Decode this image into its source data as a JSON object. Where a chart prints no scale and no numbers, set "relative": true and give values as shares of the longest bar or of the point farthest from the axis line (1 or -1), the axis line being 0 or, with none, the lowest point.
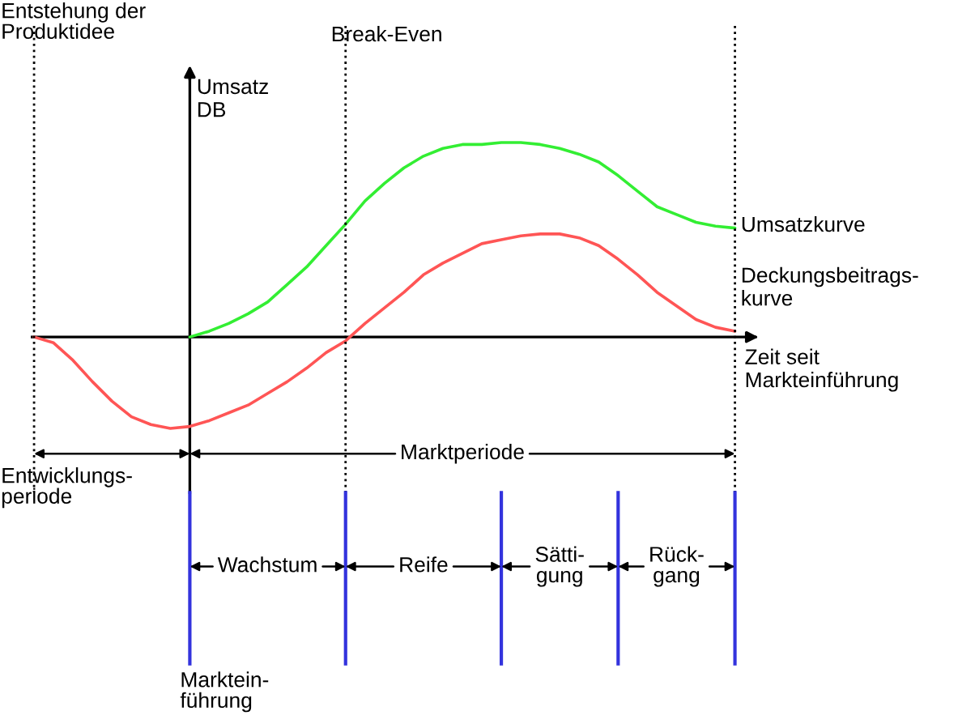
{
  "chart_data": {
    "type": "line",
    "relative": true,
    "ylabel": "Umsatz\nDB",
    "xlabel": "Zeit seit\nMarkteinführung",
    "categories": [
      null,
      null,
      null,
      null,
      null,
      null,
      null,
      null,
      null,
      null,
      null,
      null,
      null,
      null,
      null,
      null,
      null,
      null,
      null,
      null,
      null,
      null,
      null,
      null,
      null,
      null,
      null,
      null,
      null,
      null,
      null,
      null,
      null,
      null,
      null,
      null,
      null
    ],
    "series": [
      {
        "name": "Umsatzkurve",
        "color": "#33ee33",
        "values": [
          null,
          null,
          null,
          null,
          null,
          null,
          null,
          null,
          0,
          0.03,
          0.07,
          0.12,
          0.18,
          0.27,
          0.36,
          0.47,
          0.58,
          0.7,
          0.79,
          0.87,
          0.93,
          0.97,
          0.99,
          0.99,
          1.0,
          1.0,
          0.99,
          0.97,
          0.94,
          0.9,
          0.83,
          0.75,
          0.67,
          0.63,
          0.59,
          0.57,
          0.56
        ]
      },
      {
        "name": "Deckungsbeitrags-\nkurve",
        "color": "#ff5555",
        "values": [
          0,
          -0.03,
          -0.12,
          -0.23,
          -0.33,
          -0.41,
          -0.45,
          -0.47,
          -0.46,
          -0.43,
          -0.39,
          -0.35,
          -0.29,
          -0.23,
          -0.16,
          -0.08,
          -0.02,
          0.07,
          0.15,
          0.23,
          0.32,
          0.38,
          0.43,
          0.48,
          0.5,
          0.52,
          0.53,
          0.53,
          0.51,
          0.47,
          0.4,
          0.32,
          0.23,
          0.16,
          0.09,
          0.05,
          0.03
        ]
      }
    ],
    "annotations": [
      "Entwicklungs-\nperiode",
      "Marktperiode",
      "Wachstum",
      "Reife",
      "Sätti-\ngung",
      "Rück-\ngang",
      "Entstehung der\nProduktidee",
      "Break-Even",
      "Marktein-\nführung"
    ],
    "legend": false,
    "marker": "none",
    "line_style": "solid"
  }
}
